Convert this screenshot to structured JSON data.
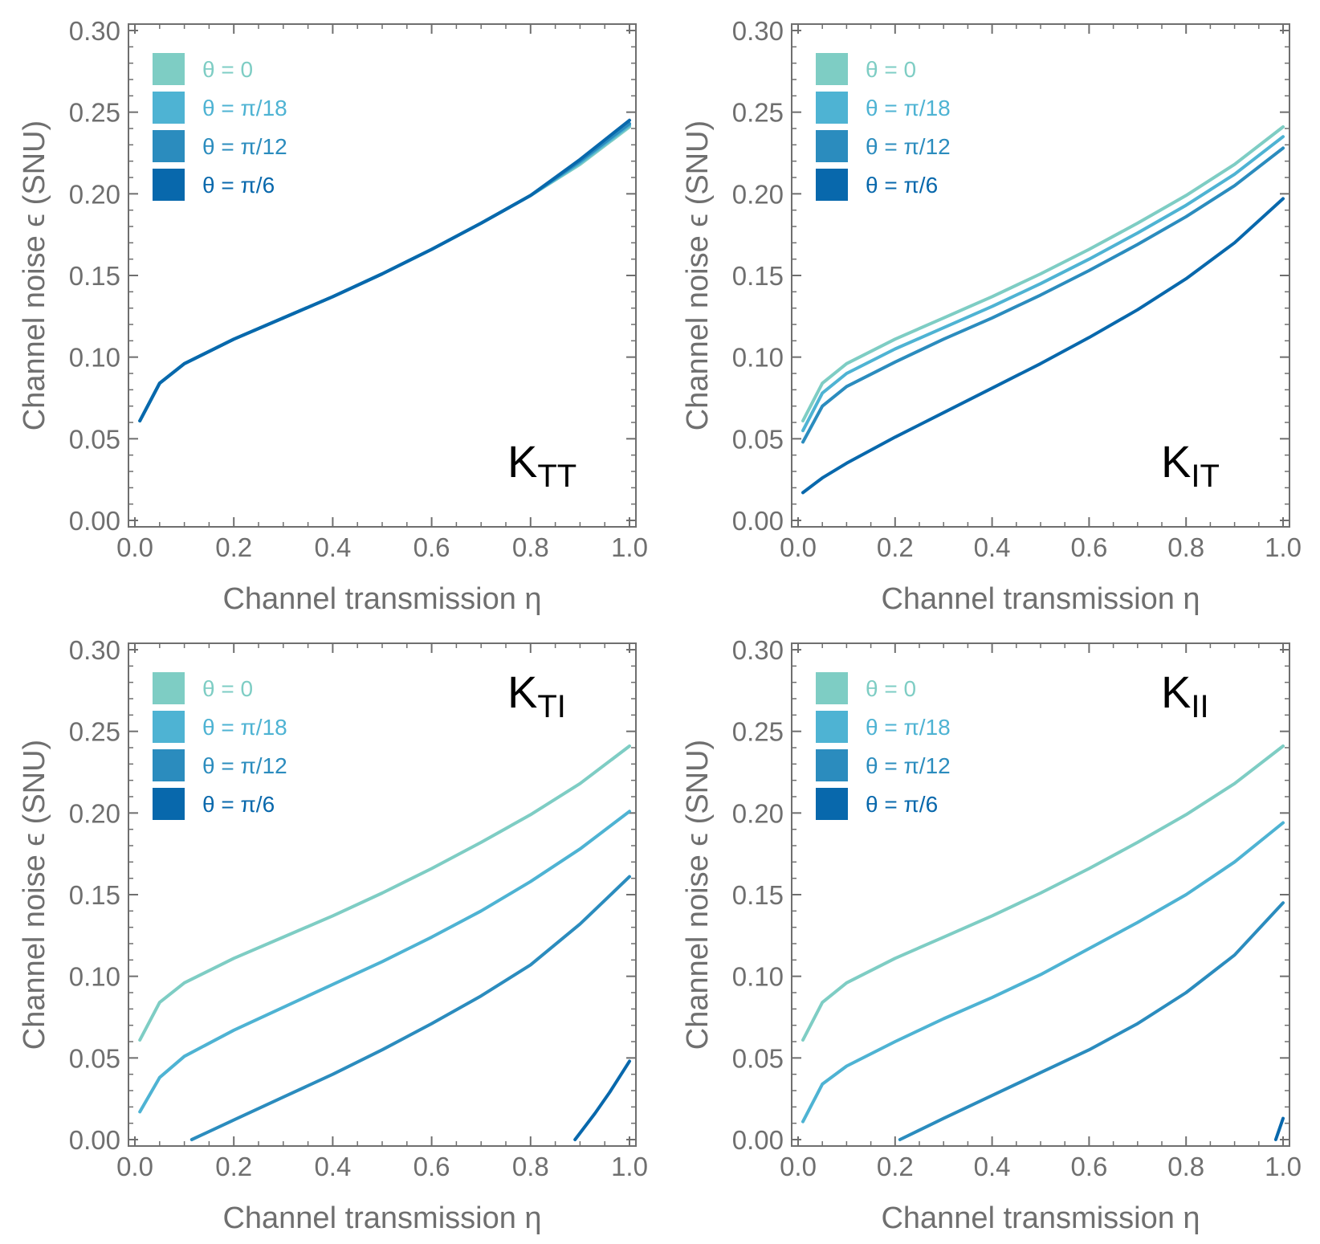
{
  "figure": {
    "background": "#ffffff",
    "axis_color": "#6f6f6f",
    "text_color": "#6f6f6f"
  },
  "chart_data": [
    {
      "type": "line",
      "panel_label": {
        "main": "K",
        "sub": "TT"
      },
      "panel_label_placement": "bottom-right",
      "xlabel": "Channel transmission η",
      "ylabel": "Channel noise ϵ (SNU)",
      "xlim": [
        0,
        1
      ],
      "ylim": [
        0,
        0.3
      ],
      "xticks": [
        "0.0",
        "0.2",
        "0.4",
        "0.6",
        "0.8",
        "1.0"
      ],
      "yticks": [
        "0.00",
        "0.05",
        "0.10",
        "0.15",
        "0.20",
        "0.25",
        "0.30"
      ],
      "legend": [
        "θ = 0",
        "θ = π/18",
        "θ = π/12",
        "θ = π/6"
      ],
      "legend_placement": "top-left",
      "colors": [
        "#7ecdc4",
        "#4eb3d3",
        "#2b8cbe",
        "#0868ac"
      ],
      "series": [
        {
          "name": "θ = 0",
          "x": [
            0.01,
            0.05,
            0.1,
            0.2,
            0.3,
            0.4,
            0.5,
            0.6,
            0.7,
            0.8,
            0.9,
            1.0
          ],
          "y": [
            0.061,
            0.084,
            0.096,
            0.111,
            0.124,
            0.137,
            0.151,
            0.166,
            0.182,
            0.199,
            0.218,
            0.241
          ]
        },
        {
          "name": "θ = π/18",
          "x": [
            0.01,
            0.05,
            0.1,
            0.2,
            0.3,
            0.4,
            0.5,
            0.6,
            0.7,
            0.8,
            0.9,
            1.0
          ],
          "y": [
            0.061,
            0.084,
            0.096,
            0.111,
            0.124,
            0.137,
            0.151,
            0.166,
            0.182,
            0.199,
            0.219,
            0.242
          ]
        },
        {
          "name": "θ = π/12",
          "x": [
            0.01,
            0.05,
            0.1,
            0.2,
            0.3,
            0.4,
            0.5,
            0.6,
            0.7,
            0.8,
            0.9,
            1.0
          ],
          "y": [
            0.061,
            0.084,
            0.096,
            0.111,
            0.124,
            0.137,
            0.151,
            0.166,
            0.182,
            0.199,
            0.22,
            0.243
          ]
        },
        {
          "name": "θ = π/6",
          "x": [
            0.01,
            0.05,
            0.1,
            0.2,
            0.3,
            0.4,
            0.5,
            0.6,
            0.7,
            0.8,
            0.9,
            1.0
          ],
          "y": [
            0.061,
            0.084,
            0.096,
            0.111,
            0.124,
            0.137,
            0.151,
            0.166,
            0.182,
            0.199,
            0.221,
            0.245
          ]
        }
      ]
    },
    {
      "type": "line",
      "panel_label": {
        "main": "K",
        "sub": "IT"
      },
      "panel_label_placement": "bottom-right",
      "xlabel": "Channel transmission η",
      "ylabel": "Channel noise ϵ (SNU)",
      "xlim": [
        0,
        1
      ],
      "ylim": [
        0,
        0.3
      ],
      "xticks": [
        "0.0",
        "0.2",
        "0.4",
        "0.6",
        "0.8",
        "1.0"
      ],
      "yticks": [
        "0.00",
        "0.05",
        "0.10",
        "0.15",
        "0.20",
        "0.25",
        "0.30"
      ],
      "legend": [
        "θ = 0",
        "θ = π/18",
        "θ = π/12",
        "θ = π/6"
      ],
      "legend_placement": "top-left",
      "colors": [
        "#7ecdc4",
        "#4eb3d3",
        "#2b8cbe",
        "#0868ac"
      ],
      "series": [
        {
          "name": "θ = 0",
          "x": [
            0.01,
            0.05,
            0.1,
            0.2,
            0.3,
            0.4,
            0.5,
            0.6,
            0.7,
            0.8,
            0.9,
            1.0
          ],
          "y": [
            0.061,
            0.084,
            0.096,
            0.111,
            0.124,
            0.137,
            0.151,
            0.166,
            0.182,
            0.199,
            0.218,
            0.241
          ]
        },
        {
          "name": "θ = π/18",
          "x": [
            0.01,
            0.05,
            0.1,
            0.2,
            0.3,
            0.4,
            0.5,
            0.6,
            0.7,
            0.8,
            0.9,
            1.0
          ],
          "y": [
            0.055,
            0.078,
            0.09,
            0.105,
            0.118,
            0.131,
            0.145,
            0.16,
            0.176,
            0.193,
            0.212,
            0.235
          ]
        },
        {
          "name": "θ = π/12",
          "x": [
            0.01,
            0.05,
            0.1,
            0.2,
            0.3,
            0.4,
            0.5,
            0.6,
            0.7,
            0.8,
            0.9,
            1.0
          ],
          "y": [
            0.048,
            0.07,
            0.082,
            0.097,
            0.111,
            0.124,
            0.138,
            0.153,
            0.169,
            0.186,
            0.205,
            0.228
          ]
        },
        {
          "name": "θ = π/6",
          "x": [
            0.01,
            0.05,
            0.1,
            0.2,
            0.3,
            0.4,
            0.5,
            0.6,
            0.7,
            0.8,
            0.9,
            1.0
          ],
          "y": [
            0.017,
            0.026,
            0.035,
            0.051,
            0.066,
            0.081,
            0.096,
            0.112,
            0.129,
            0.148,
            0.17,
            0.197
          ]
        }
      ]
    },
    {
      "type": "line",
      "panel_label": {
        "main": "K",
        "sub": "TI"
      },
      "panel_label_placement": "top-right",
      "xlabel": "Channel transmission η",
      "ylabel": "Channel noise ϵ (SNU)",
      "xlim": [
        0,
        1
      ],
      "ylim": [
        0,
        0.3
      ],
      "xticks": [
        "0.0",
        "0.2",
        "0.4",
        "0.6",
        "0.8",
        "1.0"
      ],
      "yticks": [
        "0.00",
        "0.05",
        "0.10",
        "0.15",
        "0.20",
        "0.25",
        "0.30"
      ],
      "legend": [
        "θ = 0",
        "θ = π/18",
        "θ = π/12",
        "θ = π/6"
      ],
      "legend_placement": "top-left",
      "colors": [
        "#7ecdc4",
        "#4eb3d3",
        "#2b8cbe",
        "#0868ac"
      ],
      "series": [
        {
          "name": "θ = 0",
          "x": [
            0.01,
            0.05,
            0.1,
            0.2,
            0.3,
            0.4,
            0.5,
            0.6,
            0.7,
            0.8,
            0.9,
            1.0
          ],
          "y": [
            0.061,
            0.084,
            0.096,
            0.111,
            0.124,
            0.137,
            0.151,
            0.166,
            0.182,
            0.199,
            0.218,
            0.241
          ]
        },
        {
          "name": "θ = π/18",
          "x": [
            0.01,
            0.05,
            0.1,
            0.2,
            0.3,
            0.4,
            0.5,
            0.6,
            0.7,
            0.8,
            0.9,
            1.0
          ],
          "y": [
            0.017,
            0.038,
            0.051,
            0.067,
            0.081,
            0.095,
            0.109,
            0.124,
            0.14,
            0.158,
            0.178,
            0.201
          ]
        },
        {
          "name": "θ = π/12",
          "x": [
            0.115,
            0.2,
            0.3,
            0.4,
            0.5,
            0.6,
            0.7,
            0.8,
            0.9,
            1.0
          ],
          "y": [
            0.0,
            0.012,
            0.026,
            0.04,
            0.055,
            0.071,
            0.088,
            0.107,
            0.132,
            0.161
          ]
        },
        {
          "name": "θ = π/6",
          "x": [
            0.89,
            0.93,
            0.96,
            1.0
          ],
          "y": [
            0.0,
            0.016,
            0.029,
            0.048
          ]
        }
      ]
    },
    {
      "type": "line",
      "panel_label": {
        "main": "K",
        "sub": "II"
      },
      "panel_label_placement": "top-right",
      "xlabel": "Channel transmission η",
      "ylabel": "Channel noise ϵ (SNU)",
      "xlim": [
        0,
        1
      ],
      "ylim": [
        0,
        0.3
      ],
      "xticks": [
        "0.0",
        "0.2",
        "0.4",
        "0.6",
        "0.8",
        "1.0"
      ],
      "yticks": [
        "0.00",
        "0.05",
        "0.10",
        "0.15",
        "0.20",
        "0.25",
        "0.30"
      ],
      "legend": [
        "θ = 0",
        "θ = π/18",
        "θ = π/12",
        "θ = π/6"
      ],
      "legend_placement": "top-left",
      "colors": [
        "#7ecdc4",
        "#4eb3d3",
        "#2b8cbe",
        "#0868ac"
      ],
      "series": [
        {
          "name": "θ = 0",
          "x": [
            0.01,
            0.05,
            0.1,
            0.2,
            0.3,
            0.4,
            0.5,
            0.6,
            0.7,
            0.8,
            0.9,
            1.0
          ],
          "y": [
            0.061,
            0.084,
            0.096,
            0.111,
            0.124,
            0.137,
            0.151,
            0.166,
            0.182,
            0.199,
            0.218,
            0.241
          ]
        },
        {
          "name": "θ = π/18",
          "x": [
            0.01,
            0.05,
            0.1,
            0.2,
            0.3,
            0.4,
            0.5,
            0.6,
            0.7,
            0.8,
            0.9,
            1.0
          ],
          "y": [
            0.011,
            0.034,
            0.045,
            0.06,
            0.074,
            0.087,
            0.101,
            0.117,
            0.133,
            0.15,
            0.17,
            0.194
          ]
        },
        {
          "name": "θ = π/12",
          "x": [
            0.21,
            0.3,
            0.4,
            0.5,
            0.6,
            0.7,
            0.8,
            0.9,
            1.0
          ],
          "y": [
            0.0,
            0.013,
            0.027,
            0.041,
            0.055,
            0.071,
            0.09,
            0.113,
            0.145
          ]
        },
        {
          "name": "θ = π/6",
          "x": [
            0.985,
            1.0
          ],
          "y": [
            0.0,
            0.013
          ]
        }
      ]
    }
  ]
}
